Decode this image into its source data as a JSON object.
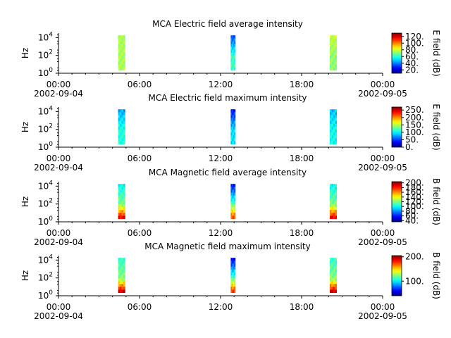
{
  "chart_data": [
    {
      "type": "heatmap",
      "title": "MCA  Electric field average intensity",
      "ylabel": "Hz",
      "y_scale": "log",
      "y_ticks": [
        {
          "exp": "0",
          "value": 1
        },
        {
          "exp": "2",
          "value": 100
        },
        {
          "exp": "4",
          "value": 10000
        }
      ],
      "x_ticks": [
        {
          "time": "00:00",
          "date": "2002-09-04"
        },
        {
          "time": "06:00",
          "date": ""
        },
        {
          "time": "12:00",
          "date": ""
        },
        {
          "time": "18:00",
          "date": ""
        },
        {
          "time": "00:00",
          "date": "2002-09-05"
        }
      ],
      "colorbar": {
        "label": "E field (dB)",
        "range": [
          10,
          130
        ],
        "ticks": [
          "120.",
          "100.",
          "80.",
          "60.",
          "40.",
          "20."
        ],
        "tick_values": [
          120,
          100,
          80,
          60,
          40,
          20
        ]
      },
      "bursts": [
        {
          "start": "04:25",
          "end": "04:55",
          "value_dB": 75,
          "high_freq_dB": 75
        },
        {
          "start": "12:45",
          "end": "13:05",
          "value_dB": 62,
          "high_freq_dB": 35
        },
        {
          "start": "20:05",
          "end": "20:35",
          "value_dB": 72,
          "high_freq_dB": 78
        }
      ]
    },
    {
      "type": "heatmap",
      "title": "MCA  Electric field maximum intensity",
      "ylabel": "Hz",
      "y_scale": "log",
      "y_ticks": [
        {
          "exp": "0",
          "value": 1
        },
        {
          "exp": "2",
          "value": 100
        },
        {
          "exp": "4",
          "value": 10000
        }
      ],
      "x_ticks": [
        {
          "time": "00:00",
          "date": "2002-09-04"
        },
        {
          "time": "06:00",
          "date": ""
        },
        {
          "time": "12:00",
          "date": ""
        },
        {
          "time": "18:00",
          "date": ""
        },
        {
          "time": "00:00",
          "date": "2002-09-05"
        }
      ],
      "colorbar": {
        "label": "E field (dB)",
        "range": [
          0,
          270
        ],
        "ticks": [
          "250.",
          "200.",
          "150.",
          "100.",
          "50.",
          "0."
        ],
        "tick_values": [
          250,
          200,
          150,
          100,
          50,
          0
        ]
      },
      "bursts": [
        {
          "start": "04:25",
          "end": "04:55",
          "value_dB": 110,
          "high_freq_dB": 80
        },
        {
          "start": "12:45",
          "end": "13:05",
          "value_dB": 95,
          "high_freq_dB": 40
        },
        {
          "start": "20:05",
          "end": "20:35",
          "value_dB": 105,
          "high_freq_dB": 85
        }
      ]
    },
    {
      "type": "heatmap",
      "title": "MCA  Magnetic field average intensity",
      "ylabel": "Hz",
      "y_scale": "log",
      "y_ticks": [
        {
          "exp": "0",
          "value": 1
        },
        {
          "exp": "2",
          "value": 100
        },
        {
          "exp": "4",
          "value": 10000
        }
      ],
      "x_ticks": [
        {
          "time": "00:00",
          "date": "2002-09-04"
        },
        {
          "time": "06:00",
          "date": ""
        },
        {
          "time": "12:00",
          "date": ""
        },
        {
          "time": "18:00",
          "date": ""
        },
        {
          "time": "00:00",
          "date": "2002-09-05"
        }
      ],
      "colorbar": {
        "label": "B field (dB)",
        "range": [
          35,
          205
        ],
        "ticks": [
          "200.",
          "180.",
          "160.",
          "140.",
          "120.",
          "100.",
          "80.",
          "60.",
          "40."
        ],
        "tick_values": [
          200,
          180,
          160,
          140,
          120,
          100,
          80,
          60,
          40
        ]
      },
      "bursts": [
        {
          "start": "04:25",
          "end": "04:55",
          "value_dB": 120,
          "high_freq_dB": 100,
          "low_freq_dB": 185
        },
        {
          "start": "12:45",
          "end": "13:05",
          "value_dB": 115,
          "high_freq_dB": 60,
          "low_freq_dB": 170
        },
        {
          "start": "20:05",
          "end": "20:35",
          "value_dB": 120,
          "high_freq_dB": 100,
          "low_freq_dB": 185
        }
      ]
    },
    {
      "type": "heatmap",
      "title": "MCA  Magnetic field maximum intensity",
      "ylabel": "Hz",
      "y_scale": "log",
      "y_ticks": [
        {
          "exp": "0",
          "value": 1
        },
        {
          "exp": "2",
          "value": 100
        },
        {
          "exp": "4",
          "value": 10000
        }
      ],
      "x_ticks": [
        {
          "time": "00:00",
          "date": "2002-09-04"
        },
        {
          "time": "06:00",
          "date": ""
        },
        {
          "time": "12:00",
          "date": ""
        },
        {
          "time": "18:00",
          "date": ""
        },
        {
          "time": "00:00",
          "date": "2002-09-05"
        }
      ],
      "colorbar": {
        "label": "B field (dB)",
        "range": [
          40,
          205
        ],
        "ticks": [
          "200.",
          "100."
        ],
        "tick_values": [
          200,
          100
        ]
      },
      "bursts": [
        {
          "start": "04:25",
          "end": "04:55",
          "value_dB": 125,
          "high_freq_dB": 110,
          "low_freq_dB": 190
        },
        {
          "start": "12:45",
          "end": "13:05",
          "value_dB": 118,
          "high_freq_dB": 60,
          "low_freq_dB": 175
        },
        {
          "start": "20:05",
          "end": "20:35",
          "value_dB": 125,
          "high_freq_dB": 110,
          "low_freq_dB": 190
        }
      ]
    }
  ]
}
